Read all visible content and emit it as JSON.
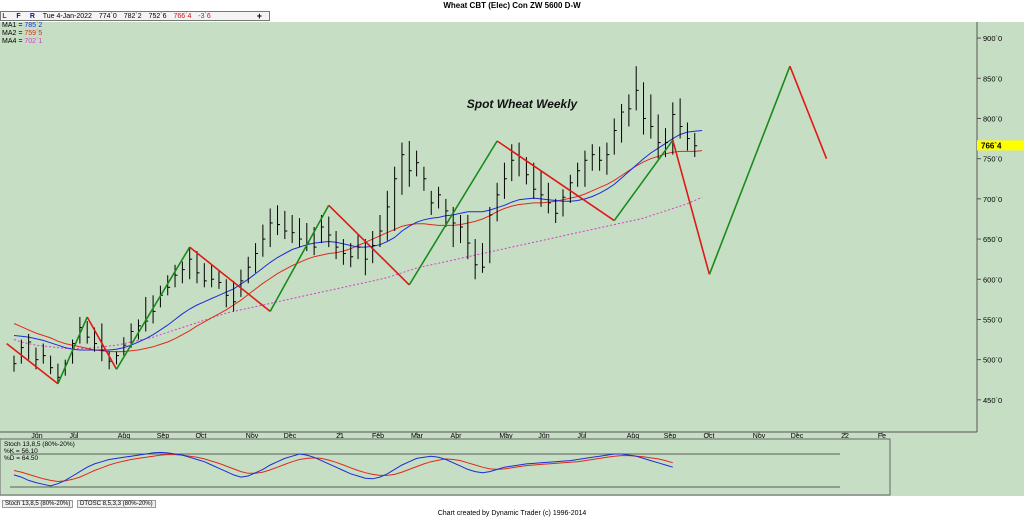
{
  "window": {
    "title": "Wheat CBT (Elec) Con ZW 5600 D-W",
    "footer": "Chart created by Dynamic Trader  (c) 1996-2014"
  },
  "infobar": {
    "buttons": [
      "L",
      "F",
      "R"
    ],
    "date": "Tue 4-Jan-2022",
    "open": "774`0",
    "high": "782`2",
    "low": "752`6",
    "close": "766`4",
    "change": "-3`6",
    "plus": "+"
  },
  "ma_labels": [
    {
      "name": "MA1",
      "value": "785`2",
      "color": "#1d2bd6"
    },
    {
      "name": "MA2",
      "value": "759`5",
      "color": "#e0291d"
    },
    {
      "name": "MA4",
      "value": "702`1",
      "color": "#d63cc8"
    }
  ],
  "stoch_labels": {
    "title": "Stoch 13,8,5 (80%-20%)",
    "k": "%K = 56.10",
    "d": "%D = 64.50"
  },
  "tabs": [
    "Stoch 13,8,5 (80%-20%)",
    "DTOSC 8,5,3,3 (80%-20%)"
  ],
  "chart_data": {
    "type": "ohlc",
    "title": "Spot Wheat Weekly",
    "y_ticks": [
      "450`0",
      "500`0",
      "550`0",
      "600`0",
      "650`0",
      "700`0",
      "750`0",
      "800`0",
      "850`0",
      "900`0"
    ],
    "ylim": [
      410,
      920
    ],
    "last_price_label": "766`4",
    "x_labels": [
      "Jun",
      "Jul",
      "Aug",
      "Sep",
      "Oct",
      "Nov",
      "Dec",
      "21",
      "Feb",
      "Mar",
      "Apr",
      "May",
      "Jun",
      "Jul",
      "Aug",
      "Sep",
      "Oct",
      "Nov",
      "Dec",
      "22",
      "Fe"
    ],
    "colors": {
      "bg": "#c6dfc4",
      "up_swing": "#1a8a1a",
      "down_swing": "#e01818",
      "ma1": "#1d2bd6",
      "ma2": "#e0291d",
      "ma4": "#d63cc8",
      "last_price": "#ffff00"
    },
    "bars": [
      [
        505,
        485,
        495
      ],
      [
        525,
        495,
        515
      ],
      [
        532,
        500,
        522
      ],
      [
        515,
        488,
        500
      ],
      [
        520,
        495,
        505
      ],
      [
        505,
        482,
        490
      ],
      [
        495,
        470,
        478
      ],
      [
        500,
        480,
        495
      ],
      [
        525,
        495,
        520
      ],
      [
        553,
        520,
        540
      ],
      [
        548,
        520,
        528
      ],
      [
        540,
        510,
        520
      ],
      [
        545,
        498,
        512
      ],
      [
        510,
        488,
        498
      ],
      [
        510,
        494,
        505
      ],
      [
        528,
        505,
        518
      ],
      [
        545,
        515,
        535
      ],
      [
        550,
        525,
        542
      ],
      [
        578,
        535,
        548
      ],
      [
        580,
        545,
        560
      ],
      [
        592,
        565,
        580
      ],
      [
        605,
        580,
        590
      ],
      [
        618,
        590,
        605
      ],
      [
        622,
        595,
        612
      ],
      [
        640,
        600,
        625
      ],
      [
        635,
        595,
        608
      ],
      [
        620,
        590,
        598
      ],
      [
        618,
        590,
        600
      ],
      [
        610,
        588,
        596
      ],
      [
        600,
        565,
        580
      ],
      [
        598,
        560,
        572
      ],
      [
        612,
        578,
        598
      ],
      [
        628,
        595,
        615
      ],
      [
        645,
        608,
        632
      ],
      [
        668,
        628,
        650
      ],
      [
        688,
        640,
        670
      ],
      [
        692,
        655,
        668
      ],
      [
        685,
        650,
        660
      ],
      [
        680,
        645,
        658
      ],
      [
        676,
        640,
        650
      ],
      [
        670,
        635,
        645
      ],
      [
        665,
        630,
        640
      ],
      [
        680,
        645,
        665
      ],
      [
        678,
        640,
        655
      ],
      [
        660,
        625,
        640
      ],
      [
        650,
        618,
        632
      ],
      [
        645,
        615,
        628
      ],
      [
        655,
        625,
        640
      ],
      [
        650,
        605,
        625
      ],
      [
        660,
        620,
        642
      ],
      [
        680,
        640,
        660
      ],
      [
        710,
        648,
        690
      ],
      [
        740,
        660,
        725
      ],
      [
        770,
        705,
        755
      ],
      [
        772,
        715,
        735
      ],
      [
        760,
        728,
        745
      ],
      [
        740,
        710,
        725
      ],
      [
        710,
        680,
        695
      ],
      [
        715,
        688,
        705
      ],
      [
        700,
        665,
        685
      ],
      [
        690,
        640,
        670
      ],
      [
        680,
        645,
        665
      ],
      [
        680,
        625,
        645
      ],
      [
        650,
        600,
        618
      ],
      [
        645,
        608,
        615
      ],
      [
        690,
        620,
        680
      ],
      [
        720,
        672,
        705
      ],
      [
        745,
        700,
        725
      ],
      [
        768,
        722,
        748
      ],
      [
        770,
        728,
        752
      ],
      [
        752,
        718,
        730
      ],
      [
        745,
        700,
        712
      ],
      [
        735,
        690,
        705
      ],
      [
        720,
        682,
        695
      ],
      [
        700,
        670,
        682
      ],
      [
        712,
        678,
        702
      ],
      [
        730,
        695,
        720
      ],
      [
        745,
        715,
        735
      ],
      [
        760,
        715,
        748
      ],
      [
        768,
        735,
        755
      ],
      [
        765,
        735,
        748
      ],
      [
        770,
        730,
        755
      ],
      [
        800,
        755,
        785
      ],
      [
        818,
        770,
        808
      ],
      [
        830,
        790,
        812
      ],
      [
        865,
        810,
        835
      ],
      [
        845,
        780,
        800
      ],
      [
        830,
        775,
        790
      ],
      [
        805,
        750,
        770
      ],
      [
        788,
        752,
        770
      ],
      [
        820,
        755,
        805
      ],
      [
        825,
        775,
        790
      ],
      [
        795,
        760,
        775
      ],
      [
        782,
        752,
        766
      ]
    ],
    "ma1": [
      530,
      529,
      528,
      526,
      524,
      521,
      518,
      515,
      513,
      512,
      512,
      512,
      512,
      512,
      513,
      515,
      518,
      522,
      526,
      531,
      537,
      543,
      550,
      557,
      563,
      568,
      572,
      576,
      580,
      584,
      588,
      594,
      600,
      607,
      614,
      621,
      627,
      632,
      637,
      640,
      643,
      645,
      646,
      647,
      646,
      644,
      642,
      640,
      640,
      641,
      643,
      647,
      652,
      660,
      666,
      671,
      674,
      676,
      677,
      679,
      680,
      682,
      684,
      684,
      684,
      686,
      689,
      692,
      696,
      699,
      700,
      701,
      700,
      699,
      698,
      697,
      697,
      698,
      700,
      703,
      707,
      712,
      718,
      726,
      734,
      742,
      750,
      757,
      763,
      769,
      775,
      780,
      783,
      784,
      785
    ],
    "ma2": [
      545,
      541,
      537,
      533,
      530,
      527,
      523,
      520,
      518,
      516,
      514,
      512,
      511,
      510,
      510,
      510,
      511,
      512,
      514,
      516,
      519,
      522,
      526,
      531,
      536,
      542,
      547,
      552,
      557,
      562,
      568,
      574,
      581,
      588,
      595,
      601,
      607,
      612,
      617,
      621,
      625,
      628,
      630,
      632,
      633,
      635,
      638,
      642,
      646,
      650,
      654,
      658,
      662,
      666,
      668,
      669,
      669,
      668,
      667,
      667,
      667,
      668,
      670,
      672,
      675,
      679,
      684,
      688,
      691,
      693,
      694,
      695,
      695,
      696,
      697,
      699,
      701,
      703,
      706,
      710,
      714,
      718,
      723,
      729,
      735,
      741,
      746,
      750,
      753,
      756,
      758,
      759,
      759,
      759,
      760
    ],
    "ma4": [
      525,
      522,
      520,
      518,
      517,
      516,
      515,
      514,
      514,
      514,
      514,
      515,
      516,
      517,
      518,
      520,
      522,
      524,
      526,
      528,
      531,
      534,
      537,
      540,
      543,
      546,
      549,
      552,
      555,
      558,
      560,
      562,
      564,
      566,
      568,
      570,
      572,
      574,
      576,
      578,
      580,
      582,
      584,
      586,
      588,
      590,
      592,
      594,
      596,
      598,
      600,
      602,
      605,
      608,
      611,
      614,
      616,
      618,
      620,
      622,
      624,
      626,
      628,
      630,
      632,
      634,
      636,
      638,
      640,
      642,
      644,
      646,
      648,
      650,
      652,
      654,
      656,
      658,
      660,
      662,
      664,
      666,
      668,
      670,
      672,
      674,
      676,
      679,
      682,
      685,
      688,
      691,
      694,
      698,
      702
    ],
    "swings": [
      [
        -1,
        520
      ],
      [
        6,
        470
      ],
      [
        10,
        553
      ],
      [
        14,
        488
      ],
      [
        24,
        640
      ],
      [
        35,
        560
      ],
      [
        43,
        692
      ],
      [
        54,
        593
      ],
      [
        66,
        772
      ],
      [
        82,
        673
      ],
      [
        90,
        773
      ],
      [
        95,
        606
      ],
      [
        106,
        865
      ],
      [
        111,
        750
      ]
    ],
    "stoch_k": [
      42,
      38,
      32,
      28,
      25,
      22,
      26,
      32,
      40,
      48,
      56,
      62,
      66,
      70,
      72,
      74,
      76,
      78,
      80,
      82,
      83,
      82,
      80,
      78,
      74,
      70,
      66,
      60,
      54,
      48,
      42,
      38,
      40,
      46,
      52,
      60,
      66,
      72,
      76,
      80,
      78,
      74,
      68,
      62,
      56,
      50,
      44,
      40,
      36,
      35,
      38,
      44,
      52,
      60,
      66,
      72,
      74,
      76,
      74,
      70,
      64,
      58,
      52,
      48,
      46,
      48,
      52,
      56,
      58,
      60,
      62,
      63,
      64,
      65,
      66,
      67,
      68,
      70,
      72,
      74,
      76,
      78,
      80,
      80,
      78,
      76,
      72,
      68,
      64,
      60,
      56
    ],
    "stoch_d": [
      50,
      47,
      43,
      39,
      35,
      32,
      30,
      31,
      34,
      38,
      44,
      50,
      55,
      60,
      64,
      67,
      70,
      72,
      74,
      76,
      78,
      79,
      79,
      78,
      76,
      74,
      71,
      67,
      63,
      58,
      53,
      48,
      45,
      45,
      47,
      51,
      56,
      61,
      66,
      70,
      72,
      73,
      72,
      69,
      65,
      60,
      55,
      50,
      46,
      43,
      41,
      41,
      43,
      47,
      52,
      57,
      62,
      66,
      69,
      71,
      70,
      68,
      64,
      60,
      56,
      53,
      52,
      53,
      55,
      57,
      59,
      60,
      61,
      62,
      63,
      64,
      65,
      66,
      68,
      70,
      72,
      74,
      76,
      77,
      77,
      76,
      75,
      73,
      71,
      68,
      64
    ]
  }
}
